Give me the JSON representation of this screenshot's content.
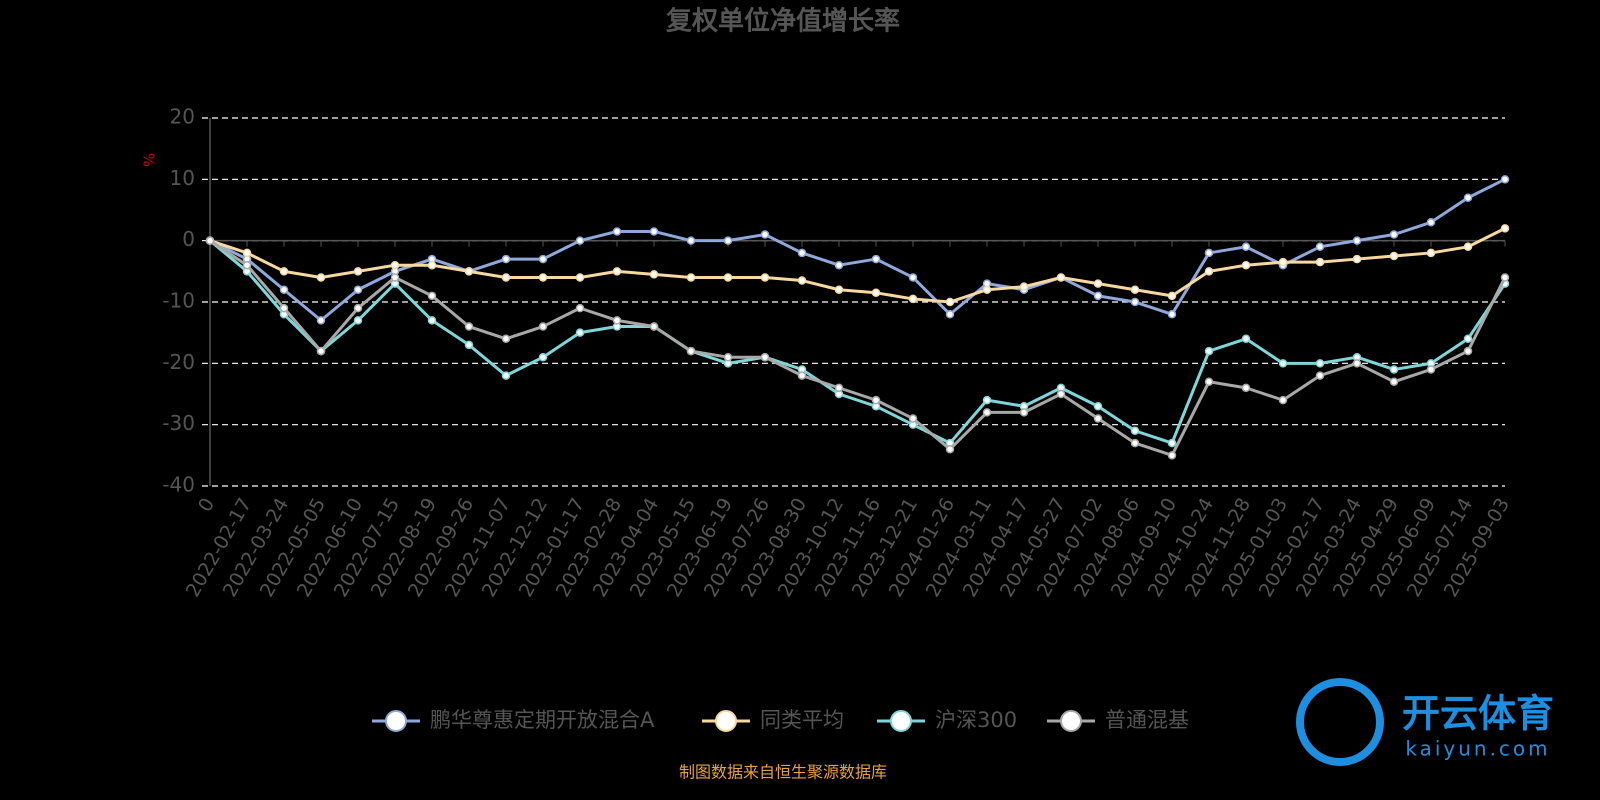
{
  "chart_data": {
    "type": "line",
    "title": "复权单位净值增长率",
    "y_label": "%",
    "categories": [
      "0",
      "2022-02-17",
      "2022-03-24",
      "2022-05-05",
      "2022-06-10",
      "2022-07-15",
      "2022-08-19",
      "2022-09-26",
      "2022-11-07",
      "2022-12-12",
      "2023-01-17",
      "2023-02-28",
      "2023-04-04",
      "2023-05-15",
      "2023-06-19",
      "2023-07-26",
      "2023-08-30",
      "2023-10-12",
      "2023-11-16",
      "2023-12-21",
      "2024-01-26",
      "2024-03-11",
      "2024-04-17",
      "2024-05-27",
      "2024-07-02",
      "2024-08-06",
      "2024-09-10",
      "2024-10-24",
      "2024-11-28",
      "2025-01-03",
      "2025-02-17",
      "2025-03-24",
      "2025-04-29",
      "2025-06-09",
      "2025-07-14",
      "2025-09-03"
    ],
    "series": [
      {
        "name": "鹏华尊惠定期开放混合A",
        "color": "#8fa8dc",
        "values": [
          0,
          -3,
          -8,
          -13,
          -8,
          -5,
          -3,
          -5,
          -3,
          -3,
          0,
          1.5,
          1.5,
          0,
          0,
          1,
          -2,
          -4,
          -3,
          -6,
          -12,
          -7,
          -8,
          -6,
          -9,
          -10,
          -12,
          -2,
          -1,
          -4,
          -1,
          0,
          1,
          3,
          7,
          10
        ]
      },
      {
        "name": "同类平均",
        "color": "#f7d9a0",
        "values": [
          0,
          -2,
          -5,
          -6,
          -5,
          -4,
          -4,
          -5,
          -6,
          -6,
          -6,
          -5,
          -5.5,
          -6,
          -6,
          -6,
          -6.5,
          -8,
          -8.5,
          -9.5,
          -10,
          -8,
          -7.5,
          -6,
          -7,
          -8,
          -9,
          -5,
          -4,
          -3.5,
          -3.5,
          -3,
          -2.5,
          -2,
          -1,
          2
        ]
      },
      {
        "name": "沪深300",
        "color": "#7fd6d8",
        "values": [
          0,
          -5,
          -12,
          -18,
          -13,
          -7,
          -13,
          -17,
          -22,
          -19,
          -15,
          -14,
          -14,
          -18,
          -20,
          -19,
          -21,
          -25,
          -27,
          -30,
          -33,
          -26,
          -27,
          -24,
          -27,
          -31,
          -33,
          -18,
          -16,
          -20,
          -20,
          -19,
          -21,
          -20,
          -16,
          -7
        ]
      },
      {
        "name": "普通混基",
        "color": "#a8a8a8",
        "values": [
          0,
          -4,
          -11,
          -18,
          -11,
          -6,
          -9,
          -14,
          -16,
          -14,
          -11,
          -13,
          -14,
          -18,
          -19,
          -19,
          -22,
          -24,
          -26,
          -29,
          -34,
          -28,
          -28,
          -25,
          -29,
          -33,
          -35,
          -23,
          -24,
          -26,
          -22,
          -20,
          -23,
          -21,
          -18,
          -6
        ]
      }
    ],
    "ylim": [
      -40,
      20
    ],
    "yticks": [
      -40,
      -30,
      -20,
      -10,
      0,
      10,
      20
    ],
    "grid": true,
    "legend": "bottom",
    "source": "制图数据来自恒生聚源数据库",
    "watermark": {
      "brand": "开云体育",
      "site": "kaiyun.com"
    }
  }
}
